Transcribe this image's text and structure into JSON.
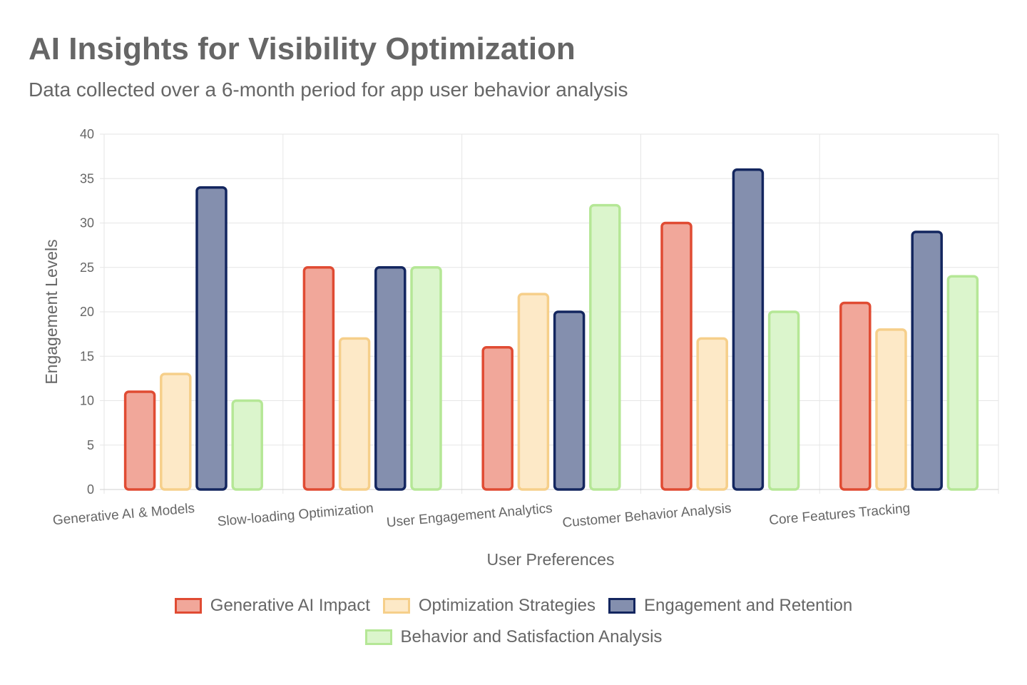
{
  "chart_data": {
    "type": "bar",
    "title": "AI Insights for Visibility Optimization",
    "subtitle": "Data collected over a 6-month period for app user behavior analysis",
    "xlabel": "User Preferences",
    "ylabel": "Engagement Levels",
    "ylim": [
      0,
      40
    ],
    "yticks": [
      0,
      5,
      10,
      15,
      20,
      25,
      30,
      35,
      40
    ],
    "categories": [
      "Generative AI & Models",
      "Slow-loading Optimization",
      "User Engagement Analytics",
      "Customer Behavior Analysis",
      "Core Features Tracking"
    ],
    "series": [
      {
        "name": "Generative AI Impact",
        "values": [
          11,
          25,
          16,
          30,
          21
        ],
        "fill": "#f1a79a",
        "stroke": "#e04b33"
      },
      {
        "name": "Optimization Strategies",
        "values": [
          13,
          17,
          22,
          17,
          18
        ],
        "fill": "#fde9c7",
        "stroke": "#f6cf8a"
      },
      {
        "name": "Engagement and Retention",
        "values": [
          34,
          25,
          20,
          36,
          29
        ],
        "fill": "#848fae",
        "stroke": "#13265f"
      },
      {
        "name": "Behavior and Satisfaction Analysis",
        "values": [
          10,
          25,
          32,
          20,
          24
        ],
        "fill": "#dbf5cc",
        "stroke": "#b5e796"
      }
    ],
    "grid": true,
    "legend": "bottom-center"
  }
}
